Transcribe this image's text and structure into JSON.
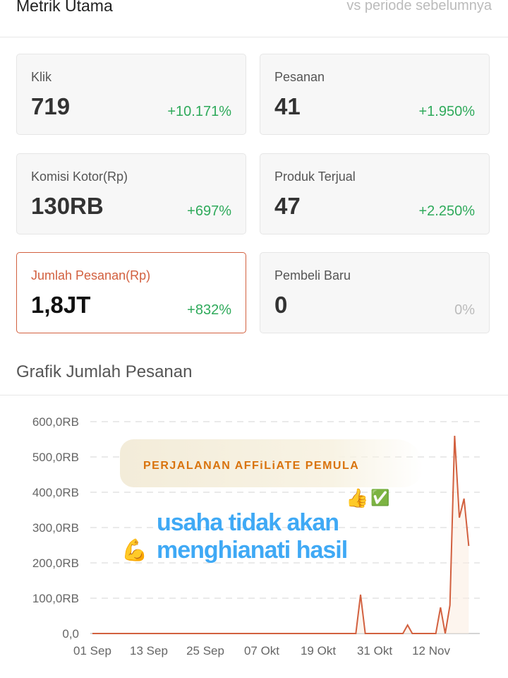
{
  "header": {
    "title": "Metrik Utama",
    "subtitle": "vs periode sebelumnya"
  },
  "metrics": [
    {
      "label": "Klik",
      "value": "719",
      "change": "+10.171%",
      "trend": "up"
    },
    {
      "label": "Pesanan",
      "value": "41",
      "change": "+1.950%",
      "trend": "up"
    },
    {
      "label": "Komisi Kotor(Rp)",
      "value": "130RB",
      "change": "+697%",
      "trend": "up"
    },
    {
      "label": "Produk Terjual",
      "value": "47",
      "change": "+2.250%",
      "trend": "up"
    },
    {
      "label": "Jumlah Pesanan(Rp)",
      "value": "1,8JT",
      "change": "+832%",
      "trend": "up",
      "selected": true
    },
    {
      "label": "Pembeli Baru",
      "value": "0",
      "change": "0%",
      "trend": "neutral"
    }
  ],
  "chart_section": {
    "title": "Grafik Jumlah Pesanan"
  },
  "overlay": {
    "banner": "PERJALANAN AFFiLiATE PEMULA",
    "line1": "usaha tidak akan",
    "line2": "menghianati hasil",
    "emojis": [
      "thumbs-up",
      "check-mark",
      "flexed-biceps"
    ]
  },
  "colors": {
    "accent": "#d2603f",
    "positive": "#2faa5b",
    "line": "#d2603f"
  },
  "chart_data": {
    "type": "line",
    "title": "",
    "xlabel": "",
    "ylabel": "",
    "x_ticks": [
      "01 Sep",
      "13 Sep",
      "25 Sep",
      "07 Okt",
      "19 Okt",
      "31 Okt",
      "12 Nov"
    ],
    "y_ticks": [
      "0,0",
      "100,0RB",
      "200,0RB",
      "300,0RB",
      "400,0RB",
      "500,0RB",
      "600,0RB"
    ],
    "ylim": [
      0,
      600000
    ],
    "grid": true,
    "series": [
      {
        "points": [
          [
            "01 Sep",
            0
          ],
          [
            "27 Okt",
            0
          ],
          [
            "28 Okt",
            110000
          ],
          [
            "29 Okt",
            0
          ],
          [
            "06 Nov",
            0
          ],
          [
            "07 Nov",
            24000
          ],
          [
            "08 Nov",
            0
          ],
          [
            "13 Nov",
            0
          ],
          [
            "14 Nov",
            74000
          ],
          [
            "15 Nov",
            0
          ],
          [
            "16 Nov",
            80000
          ],
          [
            "17 Nov",
            560000
          ],
          [
            "18 Nov",
            328000
          ],
          [
            "19 Nov",
            382000
          ],
          [
            "20 Nov",
            248000
          ]
        ]
      }
    ]
  }
}
